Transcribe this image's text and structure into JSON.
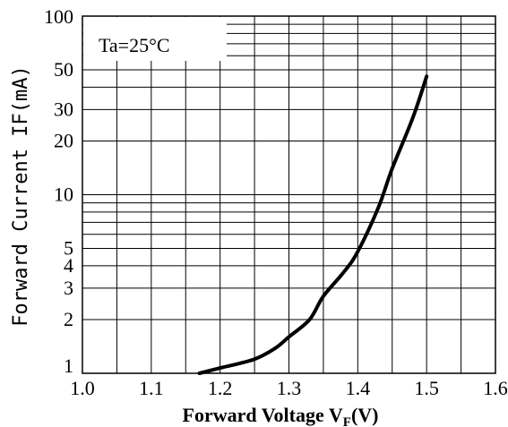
{
  "chart_data": {
    "type": "line",
    "xlabel": "Forward Voltage V",
    "xlabel_sub": "F",
    "xlabel_tail": "(V)",
    "ylabel": "Forward Current IF(mA)",
    "y_scale": "log",
    "xlim": [
      1.0,
      1.6
    ],
    "ylim": [
      1,
      100
    ],
    "x_ticks": [
      "1.0",
      "1.1",
      "1.2",
      "1.3",
      "1.4",
      "1.5",
      "1.6"
    ],
    "y_ticks": [
      "1",
      "2",
      "3",
      "4",
      "5",
      "10",
      "20",
      "30",
      "50",
      "100"
    ],
    "grid": true,
    "annotation": "Ta=25°C",
    "series": [
      {
        "x": [
          1.17,
          1.2,
          1.25,
          1.28,
          1.3,
          1.33,
          1.35,
          1.38,
          1.4,
          1.43,
          1.45,
          1.48,
          1.5
        ],
        "y": [
          1.0,
          1.07,
          1.2,
          1.38,
          1.6,
          2.0,
          2.7,
          3.7,
          4.8,
          8.5,
          14.0,
          27.0,
          46.0
        ]
      }
    ]
  }
}
